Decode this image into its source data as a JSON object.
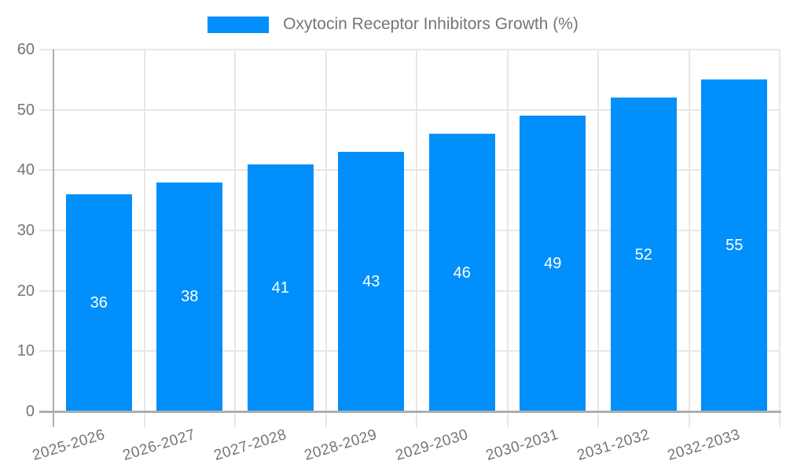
{
  "legend": {
    "label": "Oxytocin Receptor Inhibitors Growth (%)"
  },
  "chart_data": {
    "type": "bar",
    "title": "Oxytocin Receptor Inhibitors Growth (%)",
    "categories": [
      "2025-2026",
      "2026-2027",
      "2027-2028",
      "2028-2029",
      "2029-2030",
      "2030-2031",
      "2031-2032",
      "2032-2033"
    ],
    "series": [
      {
        "name": "Oxytocin Receptor Inhibitors Growth (%)",
        "values": [
          36,
          38,
          41,
          43,
          46,
          49,
          52,
          55
        ]
      }
    ],
    "bar_value_labels": [
      "36",
      "38",
      "41",
      "43",
      "46",
      "49",
      "52",
      "55"
    ],
    "xlabel": "",
    "ylabel": "",
    "ylim": [
      0,
      60
    ],
    "yticks": [
      0,
      10,
      20,
      30,
      40,
      50,
      60
    ],
    "grid": "horizontal and vertical light-gray gridlines",
    "legend_position": "top-center",
    "colors": {
      "bar": "#008ffb",
      "bar_value_text": "#ffffff",
      "axis_text": "#757575",
      "grid_line": "#e7e7e7",
      "axis_line": "#aeaeae",
      "background": "#ffffff"
    }
  }
}
